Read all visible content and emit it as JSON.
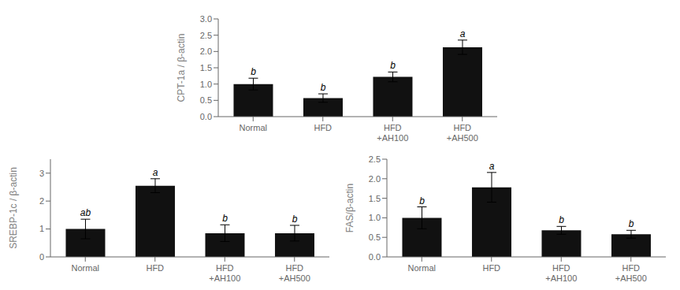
{
  "chart_data": [
    {
      "type": "bar",
      "categories": [
        "Normal",
        "HFD",
        "HFD\n+AH100",
        "HFD\n+AH500"
      ],
      "values": [
        1.0,
        0.57,
        1.22,
        2.13
      ],
      "errors": [
        0.18,
        0.13,
        0.15,
        0.22
      ],
      "annotations": [
        "b",
        "b",
        "b",
        "a"
      ],
      "ylabel": "CPT-1a / β-actin",
      "ylim": [
        0,
        3.0
      ],
      "yticks": [
        {
          "value": 0,
          "label": "0.0"
        },
        0.5,
        {
          "value": 1,
          "label": "1.0"
        },
        1.5,
        {
          "value": 2,
          "label": "2.0"
        },
        2.5,
        {
          "value": 3,
          "label": "3.0"
        }
      ],
      "color": "#111111",
      "grid": false
    },
    {
      "type": "bar",
      "categories": [
        "Normal",
        "HFD",
        "HFD\n+AH100",
        "HFD\n+AH500"
      ],
      "values": [
        1.0,
        2.55,
        0.85,
        0.85
      ],
      "errors": [
        0.35,
        0.25,
        0.3,
        0.28
      ],
      "annotations": [
        "ab",
        "a",
        "b",
        "b"
      ],
      "ylabel": "SREBP-1c / β-actin",
      "ylim": [
        0,
        3.5
      ],
      "yticks": [
        0,
        1,
        2,
        3
      ],
      "color": "#111111",
      "grid": false
    },
    {
      "type": "bar",
      "categories": [
        "Normal",
        "HFD",
        "HFD\n+AH100",
        "HFD\n+AH500"
      ],
      "values": [
        1.0,
        1.78,
        0.68,
        0.58
      ],
      "errors": [
        0.28,
        0.38,
        0.1,
        0.1
      ],
      "annotations": [
        "b",
        "a",
        "b",
        "b"
      ],
      "ylabel": "FAS/β-actin",
      "ylim": [
        0,
        2.5
      ],
      "yticks": [
        {
          "value": 0,
          "label": "0.0"
        },
        0.5,
        {
          "value": 1,
          "label": "1.0"
        },
        1.5,
        {
          "value": 2,
          "label": "2.0"
        },
        2.5
      ],
      "color": "#111111",
      "grid": false
    }
  ]
}
